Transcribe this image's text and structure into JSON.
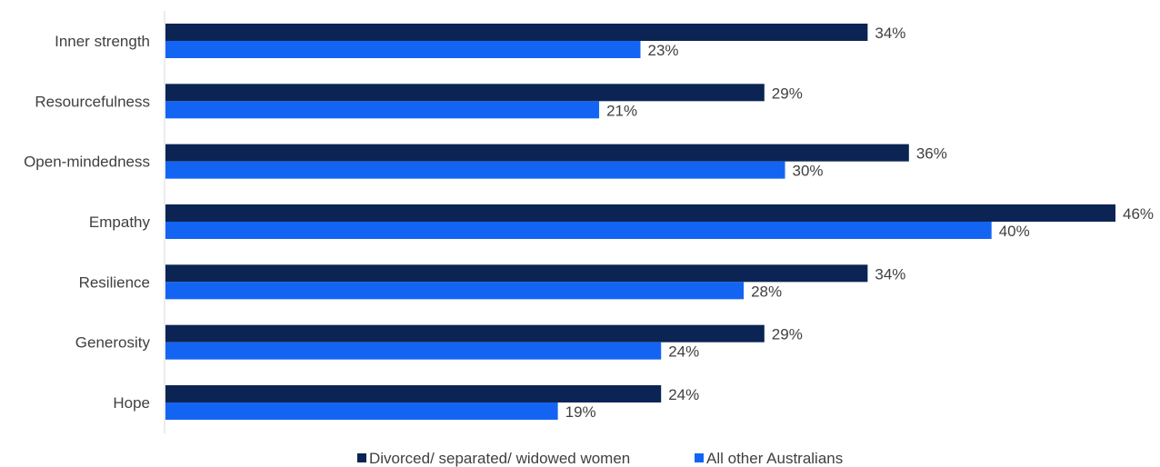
{
  "chart_data": {
    "type": "bar",
    "orientation": "horizontal",
    "categories": [
      "Inner strength",
      "Resourcefulness",
      "Open-mindedness",
      "Empathy",
      "Resilience",
      "Generosity",
      "Hope"
    ],
    "series": [
      {
        "name": "Divorced/ separated/ widowed women",
        "color": "#0b2453",
        "values": [
          34,
          29,
          36,
          46,
          34,
          29,
          24
        ],
        "labels": [
          "34%",
          "29%",
          "36%",
          "46%",
          "34%",
          "29%",
          "24%"
        ]
      },
      {
        "name": "All other Australians",
        "color": "#1464f4",
        "values": [
          23,
          21,
          30,
          40,
          28,
          24,
          19
        ],
        "labels": [
          "23%",
          "21%",
          "30%",
          "40%",
          "28%",
          "24%",
          "19%"
        ]
      }
    ],
    "xlim": [
      0,
      46
    ],
    "grid": false,
    "legend_position": "bottom-center",
    "axis_line_color": "#d9d9d9"
  }
}
